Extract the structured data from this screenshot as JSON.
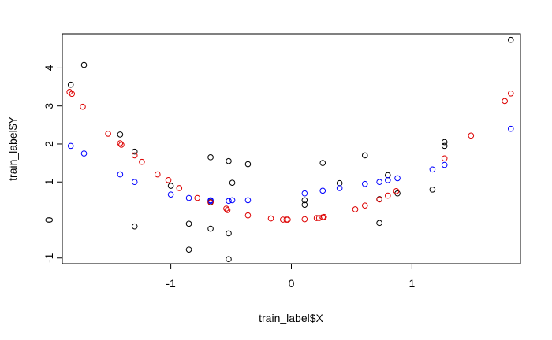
{
  "chart_data": {
    "type": "scatter",
    "title": "",
    "xlabel": "train_label$X",
    "ylabel": "train_label$Y",
    "xlim": [
      -1.9,
      1.9
    ],
    "ylim": [
      -1.15,
      4.9
    ],
    "xticks": [
      -1,
      0,
      1
    ],
    "xtick_labels": [
      "-1",
      "0",
      "1"
    ],
    "yticks": [
      -1,
      0,
      1,
      2,
      3,
      4
    ],
    "ytick_labels": [
      "-1",
      "0",
      "1",
      "2",
      "3",
      "4"
    ],
    "grid": false,
    "legend": "none",
    "series": [
      {
        "color": "#000000",
        "points": [
          [
            -1.83,
            3.56
          ],
          [
            -1.72,
            4.08
          ],
          [
            -1.42,
            2.25
          ],
          [
            -1.3,
            1.8
          ],
          [
            -1.3,
            -0.17
          ],
          [
            -1.0,
            0.9
          ],
          [
            -0.85,
            -0.1
          ],
          [
            -0.85,
            -0.78
          ],
          [
            -0.67,
            1.65
          ],
          [
            -0.67,
            -0.23
          ],
          [
            -0.67,
            0.47
          ],
          [
            -0.52,
            1.55
          ],
          [
            -0.52,
            -0.35
          ],
          [
            -0.52,
            -1.03
          ],
          [
            -0.49,
            0.98
          ],
          [
            -0.36,
            1.47
          ],
          [
            0.11,
            0.52
          ],
          [
            0.11,
            0.4
          ],
          [
            0.26,
            1.5
          ],
          [
            0.4,
            0.97
          ],
          [
            0.61,
            1.7
          ],
          [
            0.73,
            0.55
          ],
          [
            0.73,
            -0.08
          ],
          [
            0.8,
            1.18
          ],
          [
            0.88,
            0.7
          ],
          [
            1.17,
            0.8
          ],
          [
            1.27,
            2.05
          ],
          [
            1.27,
            1.95
          ],
          [
            1.82,
            4.74
          ]
        ]
      },
      {
        "color": "#0000ff",
        "points": [
          [
            -1.83,
            1.95
          ],
          [
            -1.72,
            1.75
          ],
          [
            -1.42,
            1.2
          ],
          [
            -1.3,
            1.0
          ],
          [
            -1.0,
            0.67
          ],
          [
            -0.85,
            0.58
          ],
          [
            -0.67,
            0.52
          ],
          [
            -0.67,
            0.5
          ],
          [
            -0.52,
            0.5
          ],
          [
            -0.49,
            0.52
          ],
          [
            -0.36,
            0.52
          ],
          [
            0.11,
            0.7
          ],
          [
            0.26,
            0.77
          ],
          [
            0.4,
            0.84
          ],
          [
            0.61,
            0.95
          ],
          [
            0.73,
            1.0
          ],
          [
            0.8,
            1.05
          ],
          [
            0.88,
            1.1
          ],
          [
            1.17,
            1.33
          ],
          [
            1.27,
            1.45
          ],
          [
            1.82,
            2.4
          ]
        ]
      },
      {
        "color": "#dd0000",
        "points": [
          [
            -1.84,
            3.37
          ],
          [
            -1.82,
            3.32
          ],
          [
            -1.73,
            2.98
          ],
          [
            -1.52,
            2.27
          ],
          [
            -1.42,
            2.02
          ],
          [
            -1.41,
            1.98
          ],
          [
            -1.3,
            1.7
          ],
          [
            -1.24,
            1.53
          ],
          [
            -1.11,
            1.2
          ],
          [
            -1.02,
            1.05
          ],
          [
            -0.93,
            0.84
          ],
          [
            -0.78,
            0.58
          ],
          [
            -0.67,
            0.46
          ],
          [
            -0.54,
            0.3
          ],
          [
            -0.53,
            0.26
          ],
          [
            -0.36,
            0.12
          ],
          [
            -0.17,
            0.04
          ],
          [
            -0.07,
            0.01
          ],
          [
            -0.04,
            0.01
          ],
          [
            -0.03,
            0.01
          ],
          [
            0.11,
            0.02
          ],
          [
            0.21,
            0.05
          ],
          [
            0.23,
            0.05
          ],
          [
            0.26,
            0.07
          ],
          [
            0.27,
            0.08
          ],
          [
            0.53,
            0.28
          ],
          [
            0.61,
            0.38
          ],
          [
            0.73,
            0.54
          ],
          [
            0.8,
            0.64
          ],
          [
            0.87,
            0.76
          ],
          [
            1.27,
            1.62
          ],
          [
            1.49,
            2.22
          ],
          [
            1.77,
            3.13
          ],
          [
            1.82,
            3.33
          ]
        ]
      }
    ]
  }
}
